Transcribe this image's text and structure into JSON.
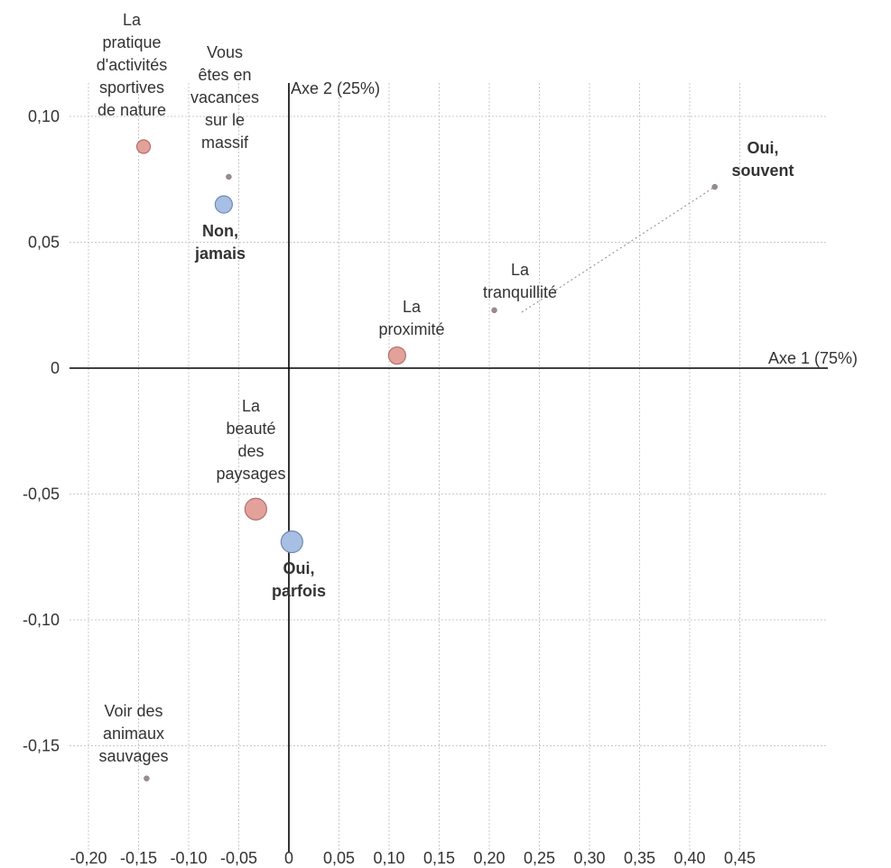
{
  "chart_data": {
    "type": "scatter",
    "title": "",
    "x_axis_label": "Axe 1 (75%)",
    "y_axis_label": "Axe 2 (25%)",
    "xlim": [
      -0.2,
      0.45
    ],
    "ylim": [
      -0.15,
      0.1
    ],
    "x_ticks": [
      "-0,20",
      "-0,15",
      "-0,10",
      "-0,05",
      "0",
      "0,05",
      "0,10",
      "0,15",
      "0,20",
      "0,25",
      "0,30",
      "0,35",
      "0,40",
      "0,45"
    ],
    "y_ticks": [
      "0,10",
      "0,05",
      "0",
      "-0,05",
      "-0,10",
      "-0,15"
    ],
    "grid": true,
    "colors": {
      "red_group": "#e3a19c",
      "blue_group": "#a6bfe3",
      "small_point": "#9a8a8a"
    },
    "points": [
      {
        "label": "La pratique d'activités sportives de nature",
        "x": -0.145,
        "y": 0.088,
        "size": "small",
        "color": "red_group",
        "bold": false
      },
      {
        "label": "Vous êtes en vacances sur le massif",
        "x": -0.06,
        "y": 0.076,
        "size": "tiny",
        "color": "small_point",
        "bold": false
      },
      {
        "label": "Non, jamais",
        "x": -0.065,
        "y": 0.065,
        "size": "medium",
        "color": "blue_group",
        "bold": true
      },
      {
        "label": "Oui, souvent",
        "x": 0.425,
        "y": 0.072,
        "size": "tiny",
        "color": "small_point",
        "bold": true
      },
      {
        "label": "La tranquillité",
        "x": 0.205,
        "y": 0.023,
        "size": "tiny",
        "color": "small_point",
        "bold": false
      },
      {
        "label": "La proximité",
        "x": 0.108,
        "y": 0.005,
        "size": "medium",
        "color": "red_group",
        "bold": false
      },
      {
        "label": "La beauté des paysages",
        "x": -0.033,
        "y": -0.056,
        "size": "large",
        "color": "red_group",
        "bold": false
      },
      {
        "label": "Oui, parfois",
        "x": 0.003,
        "y": -0.069,
        "size": "large",
        "color": "blue_group",
        "bold": true
      },
      {
        "label": "Voir des animaux sauvages",
        "x": -0.142,
        "y": -0.163,
        "size": "tiny",
        "color": "small_point",
        "bold": false
      }
    ]
  }
}
